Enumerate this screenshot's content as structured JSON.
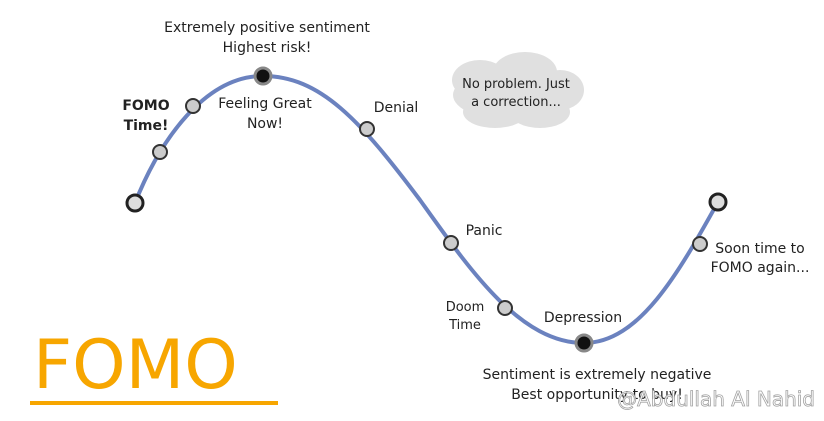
{
  "brand": {
    "title": "FOMO"
  },
  "watermark": "@Abdullah Al Nahid",
  "annotations": [
    {
      "lines": [
        "Extremely positive sentiment",
        "Highest risk!"
      ]
    },
    {
      "lines": [
        "FOMO",
        "Time!"
      ]
    },
    {
      "lines": [
        "Feeling Great",
        "Now!"
      ]
    },
    {
      "lines": [
        "Denial"
      ]
    },
    {
      "lines": [
        "No problem. Just",
        "a correction..."
      ]
    },
    {
      "lines": [
        "Panic"
      ]
    },
    {
      "lines": [
        "Doom",
        "Time"
      ]
    },
    {
      "lines": [
        "Depression"
      ]
    },
    {
      "lines": [
        "Soon time to",
        "FOMO again..."
      ]
    },
    {
      "lines": [
        "Sentiment is extremely negative",
        "Best opportunity to buy!"
      ]
    }
  ]
}
